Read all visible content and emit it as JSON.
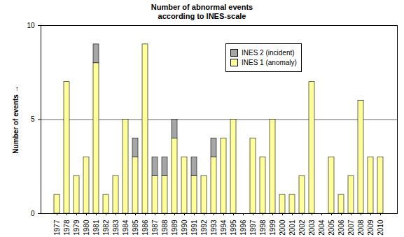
{
  "chart_data": {
    "type": "bar",
    "title": "Number of abnormal events\naccording to INES-scale",
    "y_label": "Number of events",
    "categories": [
      "1977",
      "1978",
      "1979",
      "1980",
      "1981",
      "1982",
      "1983",
      "1984",
      "1985",
      "1986",
      "1987",
      "1988",
      "1989",
      "1990",
      "1991",
      "1992",
      "1993",
      "1994",
      "1995",
      "1996",
      "1997",
      "1998",
      "1999",
      "2000",
      "2001",
      "2002",
      "2003",
      "2004",
      "2005",
      "2006",
      "2007",
      "2008",
      "2009",
      "2010"
    ],
    "series": [
      {
        "name": "INES 1 (anomaly)",
        "color": "#ffff99",
        "values": [
          1,
          7,
          2,
          3,
          8,
          1,
          2,
          5,
          3,
          9,
          2,
          2,
          4,
          3,
          2,
          2,
          3,
          4,
          5,
          0,
          4,
          3,
          5,
          1,
          1,
          2,
          7,
          0,
          3,
          1,
          2,
          6,
          3,
          3
        ]
      },
      {
        "name": "INES 2 (incident)",
        "color": "#a6a6a6",
        "values": [
          0,
          0,
          0,
          0,
          1,
          0,
          0,
          0,
          1,
          0,
          1,
          1,
          1,
          0,
          1,
          0,
          1,
          0,
          0,
          0,
          0,
          0,
          0,
          0,
          0,
          0,
          0,
          0,
          0,
          0,
          0,
          0,
          0,
          0
        ]
      }
    ],
    "stacked": true,
    "ylim": [
      0,
      10
    ],
    "yticks": [
      0,
      5,
      10
    ],
    "grid": true,
    "legend": "upper right"
  }
}
